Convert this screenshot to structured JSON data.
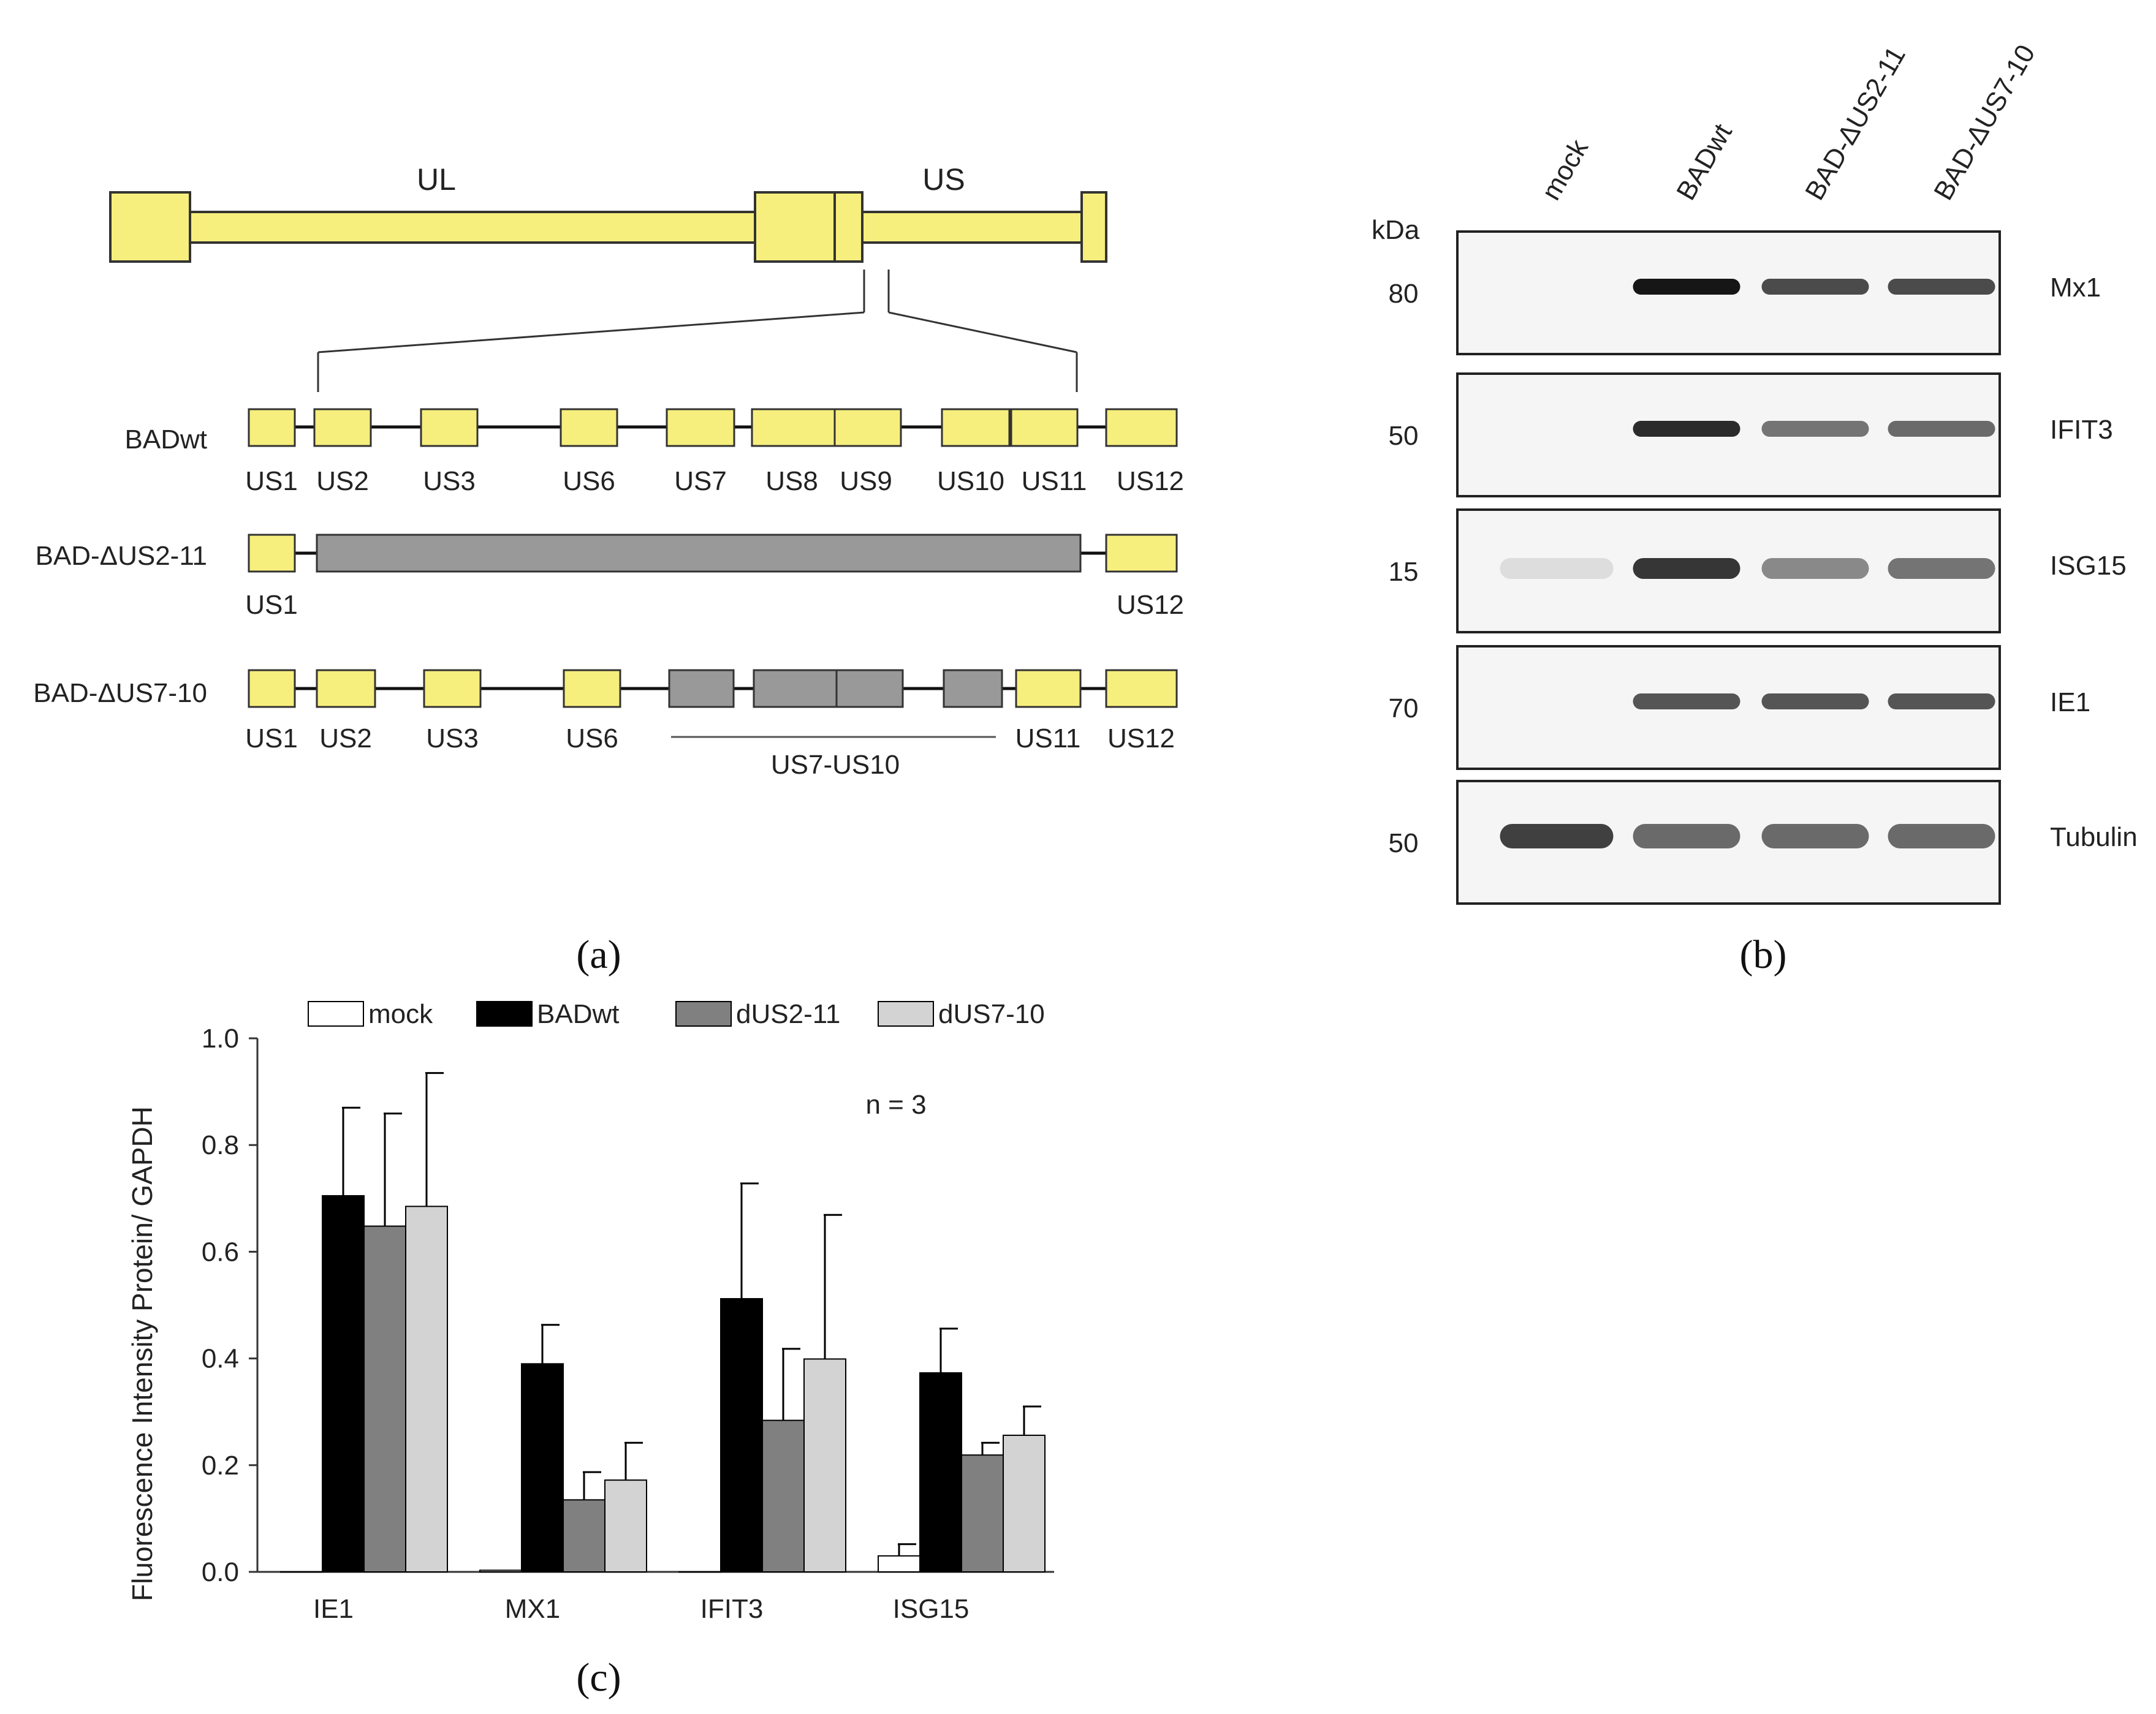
{
  "panel_a": {
    "label": "(a)",
    "genome": {
      "ul_label": "UL",
      "us_label": "US"
    },
    "tracks": [
      {
        "name": "BADwt",
        "genes": [
          "US1",
          "US2",
          "US3",
          "US6",
          "US7",
          "US8",
          "US9",
          "US10",
          "US11",
          "US12"
        ]
      },
      {
        "name": "BAD-ΔUS2-11",
        "genes": [
          "US1",
          "US12"
        ]
      },
      {
        "name": "BAD-ΔUS7-10",
        "genes": [
          "US1",
          "US2",
          "US3",
          "US6",
          "US11",
          "US12"
        ],
        "bracket_label": "US7-US10"
      }
    ]
  },
  "panel_b": {
    "label": "(b)",
    "lanes": [
      "mock",
      "BADwt",
      "BAD-ΔUS2-11",
      "BAD-ΔUS7-10"
    ],
    "kda_label": "kDa",
    "blots": [
      {
        "protein": "Mx1",
        "kda": "80"
      },
      {
        "protein": "IFIT3",
        "kda": "50"
      },
      {
        "protein": "ISG15",
        "kda": "15"
      },
      {
        "protein": "IE1",
        "kda": "70"
      },
      {
        "protein": "Tubulin",
        "kda": "50"
      }
    ]
  },
  "panel_c": {
    "label": "(c)",
    "annotation": "n = 3"
  },
  "chart_data": {
    "type": "bar",
    "categories": [
      "IE1",
      "MX1",
      "IFIT3",
      "ISG15"
    ],
    "series": [
      {
        "name": "mock",
        "color": "#ffffff",
        "values": [
          0.0,
          0.003,
          0.0,
          0.03
        ],
        "errors": [
          0.0,
          0.0,
          0.0,
          0.022
        ]
      },
      {
        "name": "BADwt",
        "color": "#000000",
        "values": [
          0.705,
          0.39,
          0.512,
          0.373
        ],
        "errors": [
          0.165,
          0.073,
          0.216,
          0.083
        ]
      },
      {
        "name": "dUS2-11",
        "color": "#808080",
        "values": [
          0.648,
          0.135,
          0.284,
          0.219
        ],
        "errors": [
          0.211,
          0.052,
          0.134,
          0.023
        ]
      },
      {
        "name": "dUS7-10",
        "color": "#d3d3d3",
        "values": [
          0.685,
          0.172,
          0.399,
          0.256
        ],
        "errors": [
          0.25,
          0.07,
          0.27,
          0.054
        ]
      }
    ],
    "ylabel": "Fluorescence Intensity Protein/ GAPDH",
    "xlabel": "",
    "ylim": [
      0,
      1.0
    ],
    "yticks": [
      "0.0",
      "0.2",
      "0.4",
      "0.6",
      "0.8",
      "1.0"
    ],
    "legend": "top",
    "grid": false
  }
}
